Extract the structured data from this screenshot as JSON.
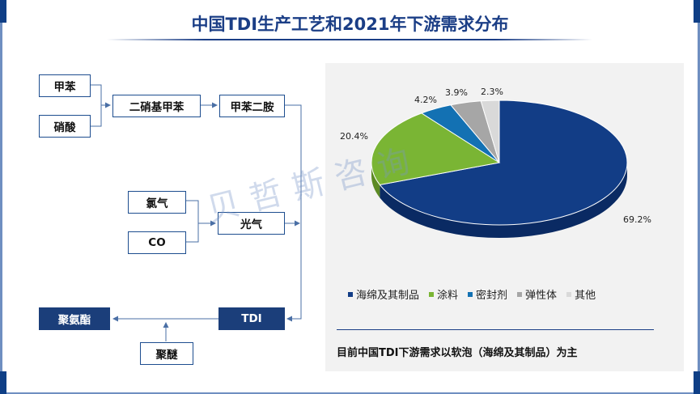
{
  "title": "中国TDI生产工艺和2021年下游需求分布",
  "flow": {
    "toluene": "甲苯",
    "nitric_acid": "硝酸",
    "dinitrotoluene": "二硝基甲苯",
    "toluenediamine": "甲苯二胺",
    "chlorine": "氯气",
    "co": "CO",
    "phosgene": "光气",
    "tdi": "TDI",
    "polyether": "聚醚",
    "polyurethane": "聚氨酯"
  },
  "watermark": "贝哲斯咨询",
  "colors": {
    "primary": "#1b3e86",
    "dark_box": "#1b3e7a",
    "sponge": "#123d86",
    "coating": "#7ab534",
    "sealant": "#1371b3",
    "elastomer": "#a6a6a6",
    "other": "#d9d9d9"
  },
  "chart_data": {
    "type": "pie",
    "style": "3d",
    "categories": [
      "海绵及其制品",
      "涂料",
      "密封剂",
      "弹性体",
      "其他"
    ],
    "values": [
      69.2,
      20.4,
      4.2,
      3.9,
      2.3
    ],
    "labels": [
      "69.2%",
      "20.4%",
      "4.2%",
      "3.9%",
      "2.3%"
    ],
    "legend_position": "bottom"
  },
  "note": "目前中国TDI下游需求以软泡（海绵及其制品）为主"
}
